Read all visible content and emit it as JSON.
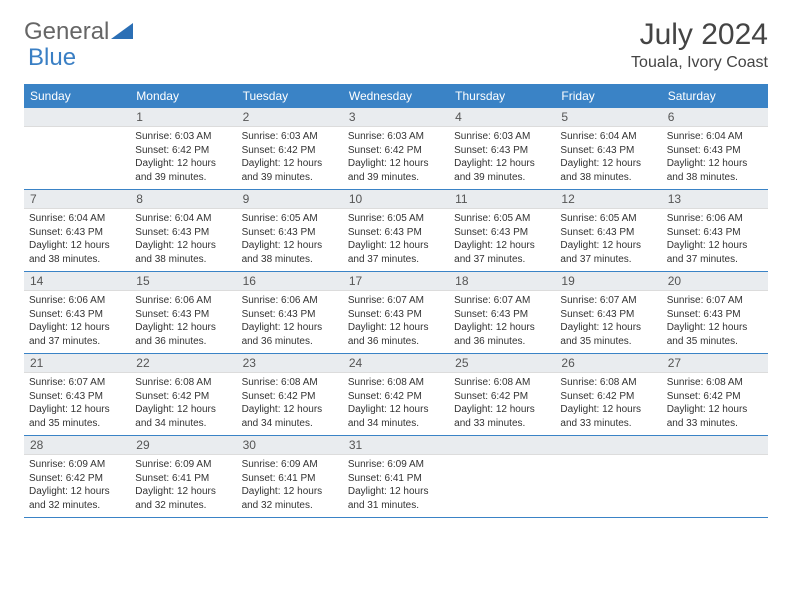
{
  "logo": {
    "part1": "General",
    "part2": "Blue"
  },
  "title": "July 2024",
  "location": "Touala, Ivory Coast",
  "colors": {
    "header_bg": "#3a83c6",
    "daynum_bg": "#e9ecef",
    "week_border": "#3a83c6"
  },
  "day_names": [
    "Sunday",
    "Monday",
    "Tuesday",
    "Wednesday",
    "Thursday",
    "Friday",
    "Saturday"
  ],
  "weeks": [
    [
      {
        "day": "",
        "sunrise": "",
        "sunset": "",
        "daylight": ""
      },
      {
        "day": "1",
        "sunrise": "Sunrise: 6:03 AM",
        "sunset": "Sunset: 6:42 PM",
        "daylight": "Daylight: 12 hours and 39 minutes."
      },
      {
        "day": "2",
        "sunrise": "Sunrise: 6:03 AM",
        "sunset": "Sunset: 6:42 PM",
        "daylight": "Daylight: 12 hours and 39 minutes."
      },
      {
        "day": "3",
        "sunrise": "Sunrise: 6:03 AM",
        "sunset": "Sunset: 6:42 PM",
        "daylight": "Daylight: 12 hours and 39 minutes."
      },
      {
        "day": "4",
        "sunrise": "Sunrise: 6:03 AM",
        "sunset": "Sunset: 6:43 PM",
        "daylight": "Daylight: 12 hours and 39 minutes."
      },
      {
        "day": "5",
        "sunrise": "Sunrise: 6:04 AM",
        "sunset": "Sunset: 6:43 PM",
        "daylight": "Daylight: 12 hours and 38 minutes."
      },
      {
        "day": "6",
        "sunrise": "Sunrise: 6:04 AM",
        "sunset": "Sunset: 6:43 PM",
        "daylight": "Daylight: 12 hours and 38 minutes."
      }
    ],
    [
      {
        "day": "7",
        "sunrise": "Sunrise: 6:04 AM",
        "sunset": "Sunset: 6:43 PM",
        "daylight": "Daylight: 12 hours and 38 minutes."
      },
      {
        "day": "8",
        "sunrise": "Sunrise: 6:04 AM",
        "sunset": "Sunset: 6:43 PM",
        "daylight": "Daylight: 12 hours and 38 minutes."
      },
      {
        "day": "9",
        "sunrise": "Sunrise: 6:05 AM",
        "sunset": "Sunset: 6:43 PM",
        "daylight": "Daylight: 12 hours and 38 minutes."
      },
      {
        "day": "10",
        "sunrise": "Sunrise: 6:05 AM",
        "sunset": "Sunset: 6:43 PM",
        "daylight": "Daylight: 12 hours and 37 minutes."
      },
      {
        "day": "11",
        "sunrise": "Sunrise: 6:05 AM",
        "sunset": "Sunset: 6:43 PM",
        "daylight": "Daylight: 12 hours and 37 minutes."
      },
      {
        "day": "12",
        "sunrise": "Sunrise: 6:05 AM",
        "sunset": "Sunset: 6:43 PM",
        "daylight": "Daylight: 12 hours and 37 minutes."
      },
      {
        "day": "13",
        "sunrise": "Sunrise: 6:06 AM",
        "sunset": "Sunset: 6:43 PM",
        "daylight": "Daylight: 12 hours and 37 minutes."
      }
    ],
    [
      {
        "day": "14",
        "sunrise": "Sunrise: 6:06 AM",
        "sunset": "Sunset: 6:43 PM",
        "daylight": "Daylight: 12 hours and 37 minutes."
      },
      {
        "day": "15",
        "sunrise": "Sunrise: 6:06 AM",
        "sunset": "Sunset: 6:43 PM",
        "daylight": "Daylight: 12 hours and 36 minutes."
      },
      {
        "day": "16",
        "sunrise": "Sunrise: 6:06 AM",
        "sunset": "Sunset: 6:43 PM",
        "daylight": "Daylight: 12 hours and 36 minutes."
      },
      {
        "day": "17",
        "sunrise": "Sunrise: 6:07 AM",
        "sunset": "Sunset: 6:43 PM",
        "daylight": "Daylight: 12 hours and 36 minutes."
      },
      {
        "day": "18",
        "sunrise": "Sunrise: 6:07 AM",
        "sunset": "Sunset: 6:43 PM",
        "daylight": "Daylight: 12 hours and 36 minutes."
      },
      {
        "day": "19",
        "sunrise": "Sunrise: 6:07 AM",
        "sunset": "Sunset: 6:43 PM",
        "daylight": "Daylight: 12 hours and 35 minutes."
      },
      {
        "day": "20",
        "sunrise": "Sunrise: 6:07 AM",
        "sunset": "Sunset: 6:43 PM",
        "daylight": "Daylight: 12 hours and 35 minutes."
      }
    ],
    [
      {
        "day": "21",
        "sunrise": "Sunrise: 6:07 AM",
        "sunset": "Sunset: 6:43 PM",
        "daylight": "Daylight: 12 hours and 35 minutes."
      },
      {
        "day": "22",
        "sunrise": "Sunrise: 6:08 AM",
        "sunset": "Sunset: 6:42 PM",
        "daylight": "Daylight: 12 hours and 34 minutes."
      },
      {
        "day": "23",
        "sunrise": "Sunrise: 6:08 AM",
        "sunset": "Sunset: 6:42 PM",
        "daylight": "Daylight: 12 hours and 34 minutes."
      },
      {
        "day": "24",
        "sunrise": "Sunrise: 6:08 AM",
        "sunset": "Sunset: 6:42 PM",
        "daylight": "Daylight: 12 hours and 34 minutes."
      },
      {
        "day": "25",
        "sunrise": "Sunrise: 6:08 AM",
        "sunset": "Sunset: 6:42 PM",
        "daylight": "Daylight: 12 hours and 33 minutes."
      },
      {
        "day": "26",
        "sunrise": "Sunrise: 6:08 AM",
        "sunset": "Sunset: 6:42 PM",
        "daylight": "Daylight: 12 hours and 33 minutes."
      },
      {
        "day": "27",
        "sunrise": "Sunrise: 6:08 AM",
        "sunset": "Sunset: 6:42 PM",
        "daylight": "Daylight: 12 hours and 33 minutes."
      }
    ],
    [
      {
        "day": "28",
        "sunrise": "Sunrise: 6:09 AM",
        "sunset": "Sunset: 6:42 PM",
        "daylight": "Daylight: 12 hours and 32 minutes."
      },
      {
        "day": "29",
        "sunrise": "Sunrise: 6:09 AM",
        "sunset": "Sunset: 6:41 PM",
        "daylight": "Daylight: 12 hours and 32 minutes."
      },
      {
        "day": "30",
        "sunrise": "Sunrise: 6:09 AM",
        "sunset": "Sunset: 6:41 PM",
        "daylight": "Daylight: 12 hours and 32 minutes."
      },
      {
        "day": "31",
        "sunrise": "Sunrise: 6:09 AM",
        "sunset": "Sunset: 6:41 PM",
        "daylight": "Daylight: 12 hours and 31 minutes."
      },
      {
        "day": "",
        "sunrise": "",
        "sunset": "",
        "daylight": ""
      },
      {
        "day": "",
        "sunrise": "",
        "sunset": "",
        "daylight": ""
      },
      {
        "day": "",
        "sunrise": "",
        "sunset": "",
        "daylight": ""
      }
    ]
  ]
}
